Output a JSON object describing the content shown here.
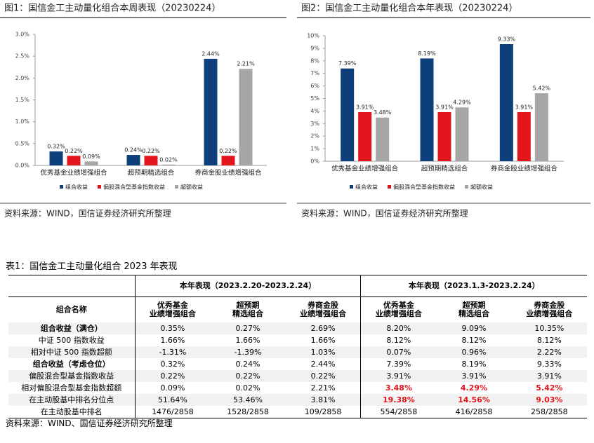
{
  "chart_data": [
    {
      "type": "bar",
      "title": "图1：国信金工主动量化组合本周表现（20230224）",
      "categories": [
        "优秀基金业绩增强组合",
        "超预期精选组合",
        "券商金股业绩增强组合"
      ],
      "series": [
        {
          "name": "组合收益",
          "color": "#0d3f7a",
          "values": [
            0.32,
            0.24,
            2.44
          ],
          "value_labels": [
            "0.32%",
            "0.24%",
            "2.44%"
          ]
        },
        {
          "name": "偏股混合型基金指数收益",
          "color": "#e3151d",
          "values": [
            0.22,
            0.22,
            0.22
          ],
          "value_labels": [
            "0.22%",
            "0.22%",
            "0.22%"
          ]
        },
        {
          "name": "超额收益",
          "color": "#a6a6a6",
          "values": [
            0.09,
            0.02,
            2.21
          ],
          "value_labels": [
            "0.09%",
            "0.02%",
            "2.21%"
          ]
        }
      ],
      "ylim": [
        0,
        3
      ],
      "yticks": [
        {
          "value": 0,
          "label": "0.0%"
        },
        {
          "value": 0.5,
          "label": "0.5%"
        },
        {
          "value": 1,
          "label": "1.0%"
        },
        {
          "value": 1.5,
          "label": "1.5%"
        },
        {
          "value": 2,
          "label": "2.0%"
        },
        {
          "value": 2.5,
          "label": "2.5%"
        },
        {
          "value": 3,
          "label": "3.0%"
        }
      ],
      "source": "资料来源：WIND，国信证券经济研究所整理"
    },
    {
      "type": "bar",
      "title": "图2：国信金工主动量化组合本年表现（20230224）",
      "categories": [
        "优秀基金业绩增强组合",
        "超预期精选组合",
        "券商金股业绩增强组合"
      ],
      "series": [
        {
          "name": "组合收益",
          "color": "#0d3f7a",
          "values": [
            7.39,
            8.19,
            9.33
          ],
          "value_labels": [
            "7.39%",
            "8.19%",
            "9.33%"
          ]
        },
        {
          "name": "偏股混合型基金指数收益",
          "color": "#e3151d",
          "values": [
            3.91,
            3.91,
            3.91
          ],
          "value_labels": [
            "3.91%",
            "3.91%",
            "3.91%"
          ]
        },
        {
          "name": "超额收益",
          "color": "#a6a6a6",
          "values": [
            3.48,
            4.29,
            5.42
          ],
          "value_labels": [
            "3.48%",
            "4.29%",
            "5.42%"
          ]
        }
      ],
      "ylim": [
        0,
        10
      ],
      "yticks": [
        {
          "value": 0,
          "label": "0%"
        },
        {
          "value": 1,
          "label": "1%"
        },
        {
          "value": 2,
          "label": "2%"
        },
        {
          "value": 3,
          "label": "3%"
        },
        {
          "value": 4,
          "label": "4%"
        },
        {
          "value": 5,
          "label": "5%"
        },
        {
          "value": 6,
          "label": "6%"
        },
        {
          "value": 7,
          "label": "7%"
        },
        {
          "value": 8,
          "label": "8%"
        },
        {
          "value": 9,
          "label": "9%"
        },
        {
          "value": 10,
          "label": "10%"
        }
      ],
      "source": "资料来源：WIND，国信证券经济研究所整理"
    }
  ],
  "table": {
    "title": "表1：国信金工主动量化组合 2023 年表现",
    "groups": [
      "本年表现（2023.2.20-2023.2.24）",
      "本年表现（2023.1.3-2023.2.24）"
    ],
    "columns": [
      "组合名称",
      "优秀基金\n业绩增强组合",
      "超预期\n精选组合",
      "券商金股\n业绩增强组合",
      "优秀基金\n业绩增强组合",
      "超预期\n精选组合",
      "券商金股\n业绩增强组合"
    ],
    "rows": [
      [
        "组合收益（满仓）",
        "0.35%",
        "0.27%",
        "2.69%",
        "8.20%",
        "9.09%",
        "10.35%"
      ],
      [
        "中证 500 指数收益",
        "1.66%",
        "1.66%",
        "1.66%",
        "8.12%",
        "8.12%",
        "8.12%"
      ],
      [
        "相对中证 500 指数超额",
        "-1.31%",
        "-1.39%",
        "1.03%",
        "0.07%",
        "0.96%",
        "2.22%"
      ],
      [
        "组合收益（考虑仓位）",
        "0.32%",
        "0.24%",
        "2.44%",
        "7.39%",
        "8.19%",
        "9.33%"
      ],
      [
        "偏股混合型基金指数收益",
        "0.22%",
        "0.22%",
        "0.22%",
        "3.91%",
        "3.91%",
        "3.91%"
      ],
      [
        "相对偏股混合型基金指数超额",
        "0.09%",
        "0.02%",
        "2.21%",
        "3.48%",
        "4.29%",
        "5.42%"
      ],
      [
        "在主动股基中排名分位点",
        "51.64%",
        "53.46%",
        "3.81%",
        "19.38%",
        "14.56%",
        "9.03%"
      ],
      [
        "在主动股基中排名",
        "1476/2858",
        "1528/2858",
        "109/2858",
        "554/2858",
        "416/2858",
        "258/2858"
      ]
    ],
    "source": "资料来源：WIND、国信证券经济研究所整理"
  }
}
